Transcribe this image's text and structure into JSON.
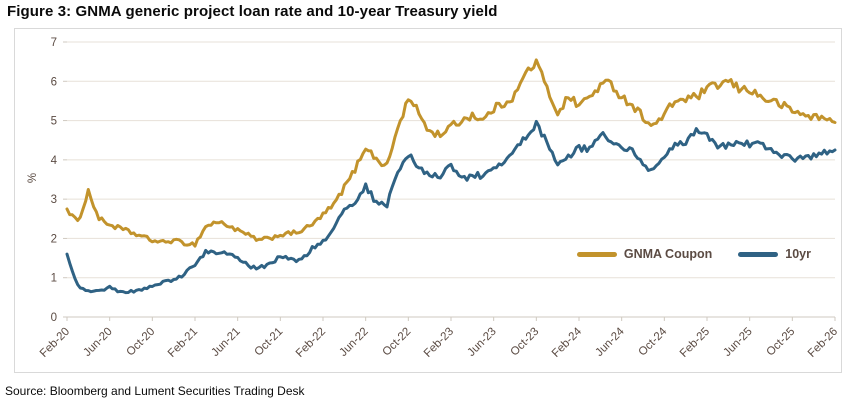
{
  "title": "Figure 3: GNMA generic project loan rate and 10-year Treasury yield",
  "source": "Source: Bloomberg and Lument Securities Trading Desk",
  "colors": {
    "gnma_line": "#C2932C",
    "treasury_line": "#2F6284",
    "axis_text": "#5b4b43",
    "gridline": "#e7e1d8",
    "axis_line": "#cfc9c0",
    "frame_border": "#d9d9d9",
    "title_text": "#0a0a0a"
  },
  "chart_data": {
    "type": "line",
    "title": "Figure 3: GNMA generic project loan rate and 10-year Treasury yield",
    "xlabel": "",
    "ylabel": "%",
    "ylim": [
      0,
      7
    ],
    "yticks": [
      0,
      1,
      2,
      3,
      4,
      5,
      6,
      7
    ],
    "grid": "horizontal",
    "legend_position": "inside-right-middle",
    "x_tick_labels": [
      "Feb-20",
      "Jun-20",
      "Oct-20",
      "Feb-21",
      "Jun-21",
      "Oct-21",
      "Feb-22",
      "Jun-22",
      "Oct-22",
      "Feb-23",
      "Jun-23",
      "Oct-23",
      "Feb-24",
      "Jun-24",
      "Oct-24",
      "Feb-25",
      "Jun-25",
      "Oct-25",
      "Feb-26"
    ],
    "x_tick_month_indices": [
      0,
      4,
      8,
      12,
      16,
      20,
      24,
      28,
      32,
      36,
      40,
      44,
      48,
      52,
      56,
      60,
      64,
      68,
      72
    ],
    "months": [
      "Feb-20",
      "Mar-20",
      "Apr-20",
      "May-20",
      "Jun-20",
      "Jul-20",
      "Aug-20",
      "Sep-20",
      "Oct-20",
      "Nov-20",
      "Dec-20",
      "Jan-21",
      "Feb-21",
      "Mar-21",
      "Apr-21",
      "May-21",
      "Jun-21",
      "Jul-21",
      "Aug-21",
      "Sep-21",
      "Oct-21",
      "Nov-21",
      "Dec-21",
      "Jan-22",
      "Feb-22",
      "Mar-22",
      "Apr-22",
      "May-22",
      "Jun-22",
      "Jul-22",
      "Aug-22",
      "Sep-22",
      "Oct-22",
      "Nov-22",
      "Dec-22",
      "Jan-23",
      "Feb-23",
      "Mar-23",
      "Apr-23",
      "May-23",
      "Jun-23",
      "Jul-23",
      "Aug-23",
      "Sep-23",
      "Oct-23",
      "Nov-23",
      "Dec-23",
      "Jan-24",
      "Feb-24",
      "Mar-24",
      "Apr-24",
      "May-24",
      "Jun-24",
      "Jul-24",
      "Aug-24",
      "Sep-24",
      "Oct-24",
      "Nov-24",
      "Dec-24",
      "Jan-25",
      "Feb-25",
      "Mar-25",
      "Apr-25",
      "May-25",
      "Jun-25",
      "Jul-25",
      "Aug-25",
      "Sep-25",
      "Oct-25",
      "Nov-25",
      "Dec-25",
      "Jan-26",
      "Feb-26"
    ],
    "series": [
      {
        "name": "GNMA Coupon",
        "color": "#C2932C",
        "values": [
          2.75,
          2.4,
          3.2,
          2.5,
          2.35,
          2.25,
          2.15,
          2.05,
          1.95,
          1.9,
          1.95,
          1.88,
          1.85,
          2.3,
          2.42,
          2.35,
          2.2,
          2.08,
          1.95,
          2.0,
          2.1,
          2.12,
          2.2,
          2.35,
          2.6,
          2.85,
          3.3,
          3.75,
          4.35,
          4.0,
          3.85,
          4.8,
          5.55,
          5.2,
          4.7,
          4.65,
          4.85,
          5.0,
          5.15,
          5.0,
          5.3,
          5.45,
          5.65,
          6.2,
          6.5,
          5.8,
          5.2,
          5.6,
          5.4,
          5.6,
          5.9,
          5.95,
          5.6,
          5.4,
          5.1,
          4.85,
          5.15,
          5.5,
          5.55,
          5.6,
          5.8,
          5.9,
          6.0,
          5.8,
          5.8,
          5.6,
          5.5,
          5.4,
          5.25,
          5.15,
          5.1,
          5.05,
          4.95
        ]
      },
      {
        "name": "10yr",
        "color": "#2F6284",
        "values": [
          1.6,
          0.8,
          0.65,
          0.68,
          0.75,
          0.62,
          0.65,
          0.68,
          0.8,
          0.88,
          0.92,
          1.1,
          1.35,
          1.65,
          1.65,
          1.6,
          1.5,
          1.3,
          1.25,
          1.35,
          1.55,
          1.45,
          1.45,
          1.75,
          1.95,
          2.2,
          2.8,
          2.9,
          3.35,
          2.9,
          2.85,
          3.7,
          4.1,
          3.85,
          3.6,
          3.55,
          3.9,
          3.5,
          3.6,
          3.6,
          3.8,
          3.95,
          4.25,
          4.55,
          4.9,
          4.45,
          3.9,
          4.1,
          4.3,
          4.25,
          4.65,
          4.5,
          4.3,
          4.2,
          3.9,
          3.7,
          4.1,
          4.35,
          4.4,
          4.75,
          4.6,
          4.3,
          4.4,
          4.45,
          4.4,
          4.38,
          4.25,
          4.12,
          4.0,
          4.08,
          4.1,
          4.18,
          4.25
        ]
      }
    ]
  }
}
